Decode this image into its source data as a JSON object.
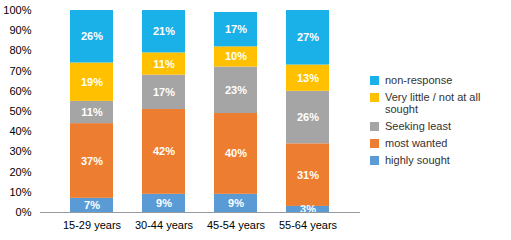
{
  "chart_data": {
    "type": "bar",
    "stacked": true,
    "data_labels": true,
    "grid": false,
    "legend": "right",
    "categories": [
      "15-29 years",
      "30-44 years",
      "45-54 years",
      "55-64 years"
    ],
    "ylim": [
      0,
      100
    ],
    "yticks": [
      {
        "value": 0,
        "label": "0%"
      },
      {
        "value": 10,
        "label": "10%"
      },
      {
        "value": 20,
        "label": "20%"
      },
      {
        "value": 30,
        "label": "30%"
      },
      {
        "value": 40,
        "label": "40%"
      },
      {
        "value": 50,
        "label": "50%"
      },
      {
        "value": 60,
        "label": "60%"
      },
      {
        "value": 70,
        "label": "70%"
      },
      {
        "value": 80,
        "label": "80%"
      },
      {
        "value": 90,
        "label": "90%"
      },
      {
        "value": 100,
        "label": "100%"
      }
    ],
    "series": [
      {
        "name": "highly sought",
        "color": "#5b9bd5",
        "values": [
          7,
          9,
          9,
          3
        ],
        "value_labels": [
          "7%",
          "9%",
          "9%",
          "3%"
        ]
      },
      {
        "name": "most wanted",
        "color": "#ed7d31",
        "values": [
          37,
          42,
          40,
          31
        ],
        "value_labels": [
          "37%",
          "42%",
          "40%",
          "31%"
        ]
      },
      {
        "name": "Seeking least",
        "color": "#a5a5a5",
        "values": [
          11,
          17,
          23,
          26
        ],
        "value_labels": [
          "11%",
          "17%",
          "23%",
          "26%"
        ]
      },
      {
        "name": "Very little / not at all sought",
        "color": "#ffc000",
        "values": [
          19,
          11,
          10,
          13
        ],
        "value_labels": [
          "19%",
          "11%",
          "10%",
          "13%"
        ]
      },
      {
        "name": "non-response",
        "color": "#1ab0e8",
        "values": [
          26,
          21,
          17,
          27
        ],
        "value_labels": [
          "26%",
          "21%",
          "17%",
          "27%"
        ]
      }
    ]
  }
}
